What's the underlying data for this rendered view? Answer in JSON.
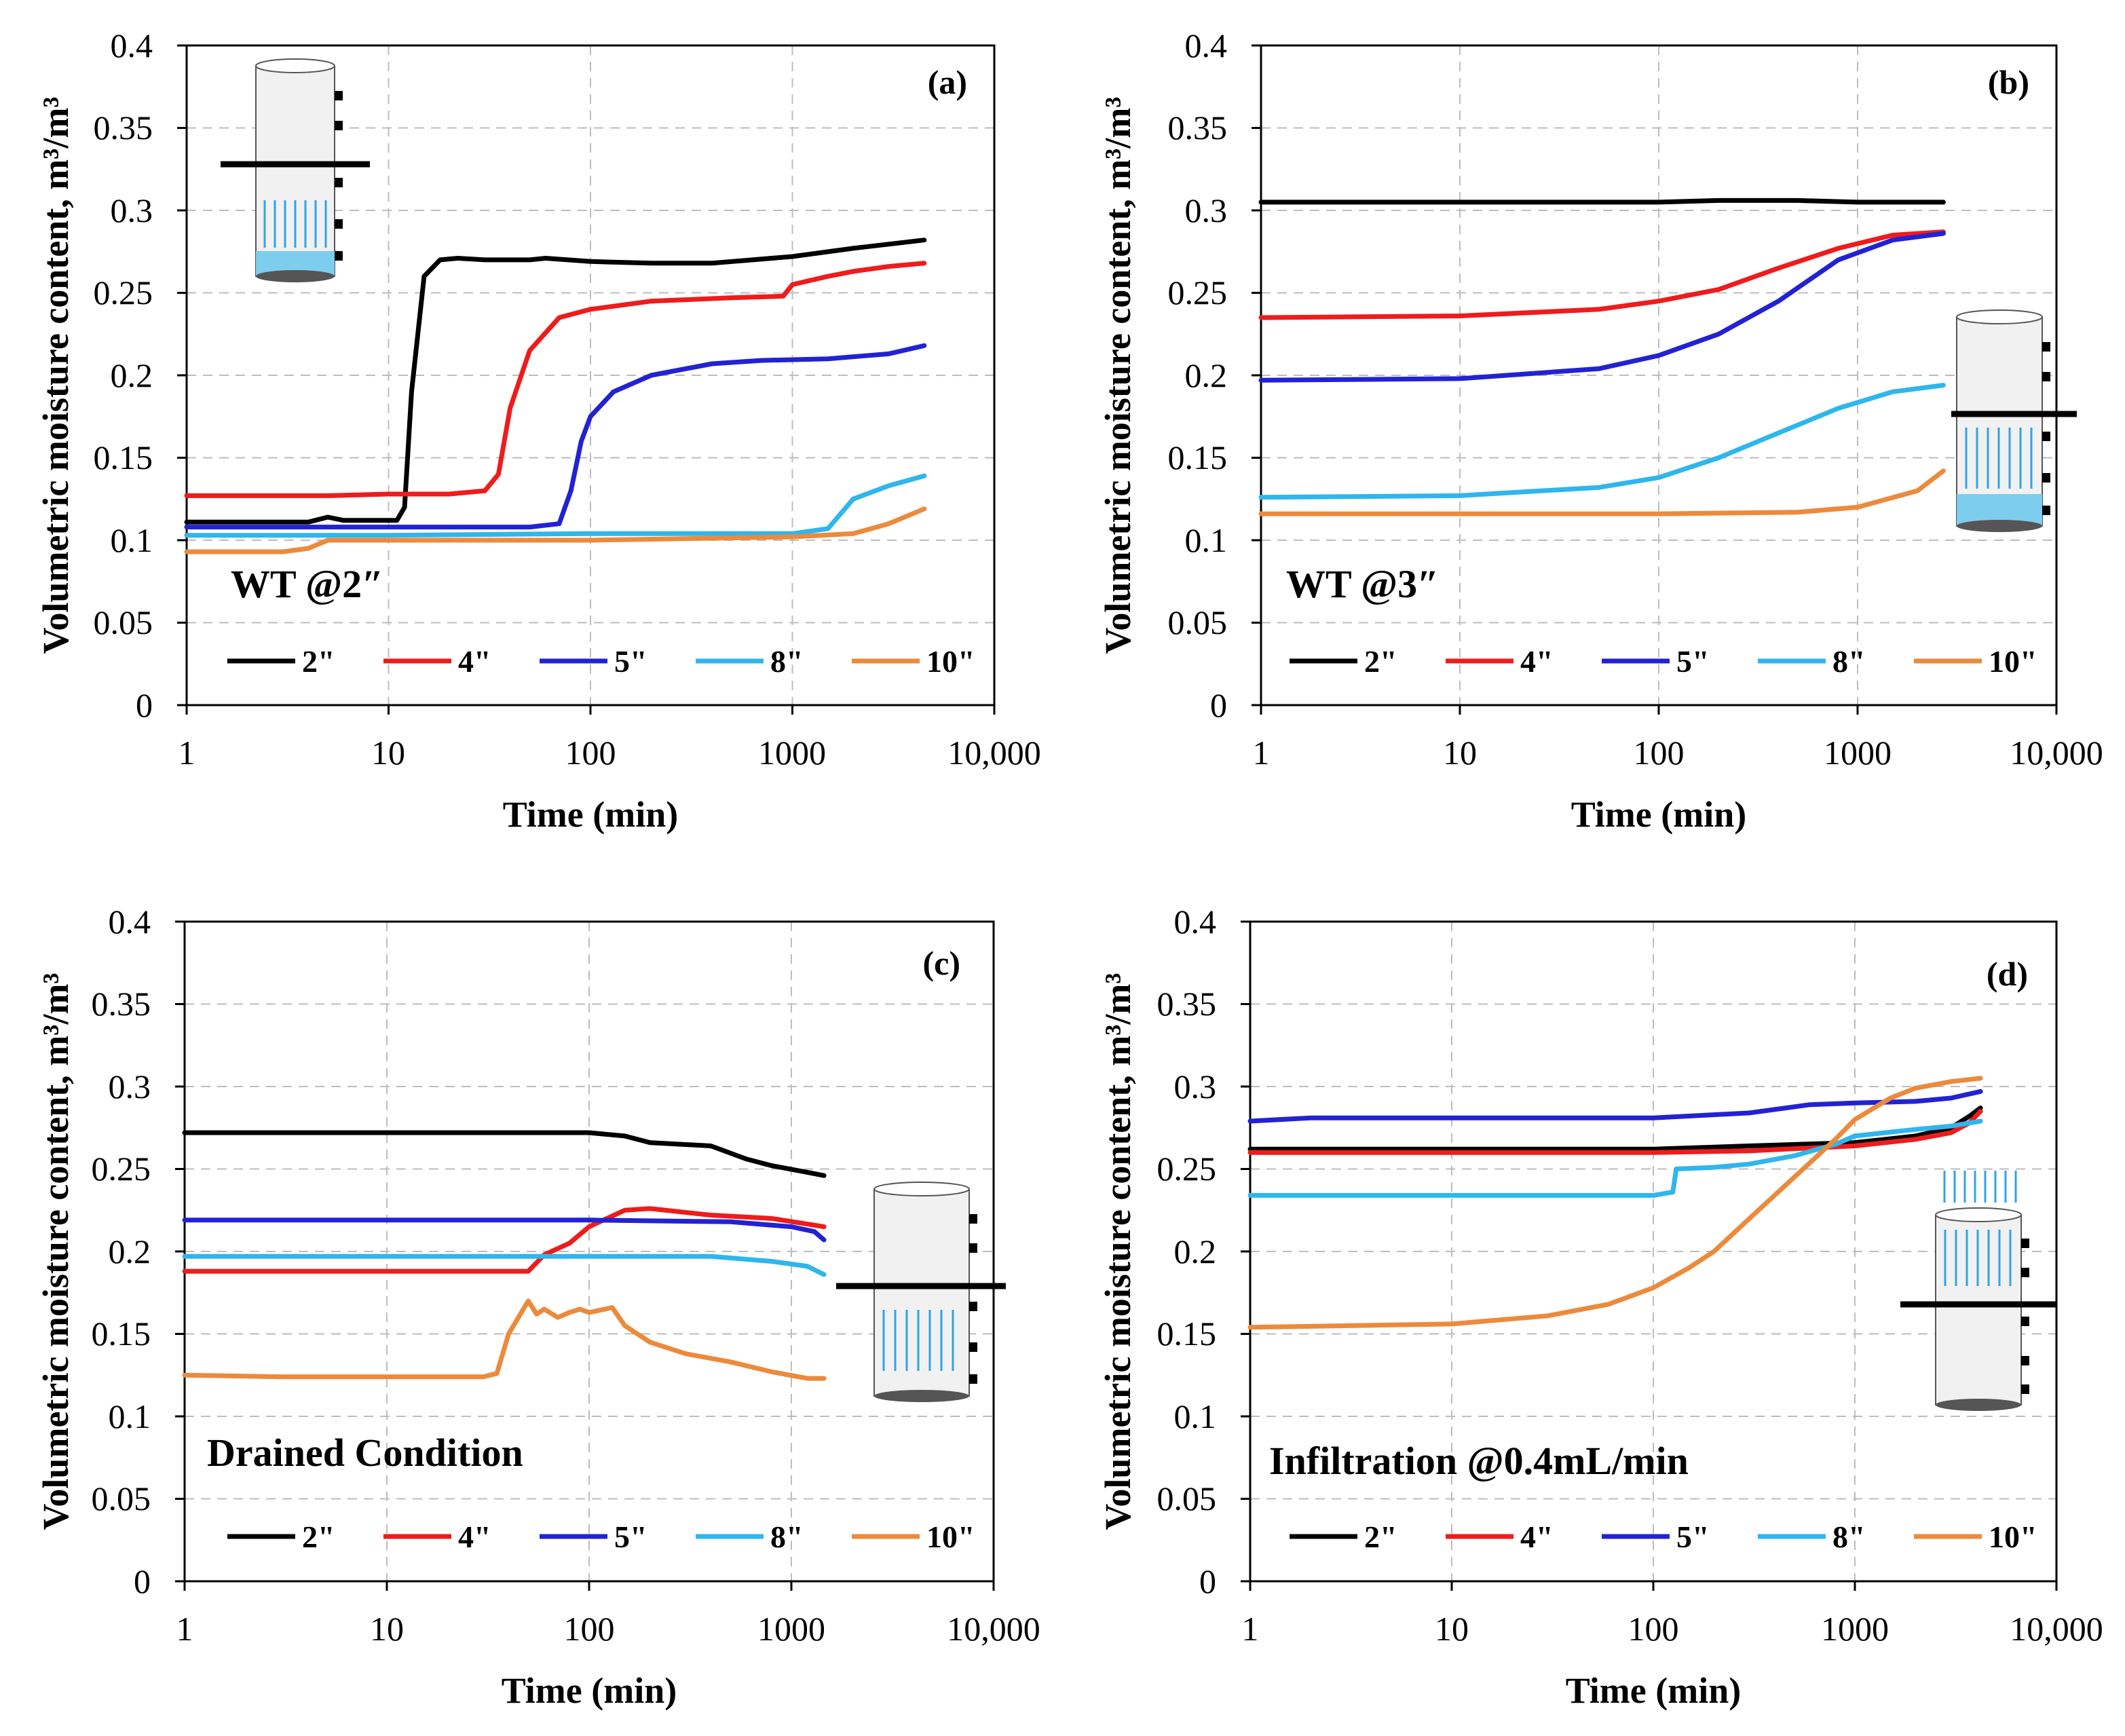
{
  "colors": {
    "s2": "#000000",
    "s4": "#ee1c1c",
    "s5": "#2222d4",
    "s8": "#2fb6ec",
    "s10": "#ec8a3c",
    "water": "#7dcdee",
    "arrow": "#2fa4e7"
  },
  "chart_data": [
    {
      "type": "line",
      "panel": "(a)",
      "condition": "WT @2″",
      "xlabel": "Time (min)",
      "ylabel": "Volumetric moisture content, m³/m³",
      "xscale": "log",
      "xlim": [
        1,
        10000
      ],
      "ylim": [
        0,
        0.4
      ],
      "x_ticks": [
        "1",
        "10",
        "100",
        "1000",
        "10,000"
      ],
      "y_ticks": [
        "0",
        "0.05",
        "0.1",
        "0.15",
        "0.2",
        "0.25",
        "0.3",
        "0.35",
        "0.4"
      ],
      "legend": [
        "2\"",
        "4\"",
        "5\"",
        "8\"",
        "10\""
      ],
      "series": [
        {
          "name": "2\"",
          "x": [
            1,
            2,
            4,
            5,
            6,
            8,
            11,
            12,
            13,
            15,
            18,
            22,
            30,
            50,
            60,
            100,
            200,
            400,
            1000,
            2000,
            4500
          ],
          "y": [
            0.111,
            0.111,
            0.111,
            0.114,
            0.112,
            0.112,
            0.112,
            0.12,
            0.19,
            0.26,
            0.27,
            0.271,
            0.27,
            0.27,
            0.271,
            0.269,
            0.268,
            0.268,
            0.272,
            0.277,
            0.282
          ]
        },
        {
          "name": "4\"",
          "x": [
            1,
            5,
            10,
            20,
            30,
            35,
            40,
            50,
            70,
            100,
            200,
            500,
            900,
            1000,
            1500,
            2000,
            3000,
            4500
          ],
          "y": [
            0.127,
            0.127,
            0.128,
            0.128,
            0.13,
            0.14,
            0.18,
            0.215,
            0.235,
            0.24,
            0.245,
            0.247,
            0.248,
            0.255,
            0.26,
            0.263,
            0.266,
            0.268
          ]
        },
        {
          "name": "5\"",
          "x": [
            1,
            10,
            50,
            70,
            80,
            90,
            100,
            130,
            200,
            400,
            700,
            1500,
            3000,
            4500
          ],
          "y": [
            0.108,
            0.108,
            0.108,
            0.11,
            0.13,
            0.16,
            0.175,
            0.19,
            0.2,
            0.207,
            0.209,
            0.21,
            0.213,
            0.218
          ]
        },
        {
          "name": "8\"",
          "x": [
            1,
            10,
            100,
            1000,
            1500,
            2000,
            3000,
            4500
          ],
          "y": [
            0.103,
            0.103,
            0.104,
            0.104,
            0.107,
            0.125,
            0.133,
            0.139
          ]
        },
        {
          "name": "10\"",
          "x": [
            1,
            3,
            4,
            5,
            10,
            100,
            1000,
            2000,
            3000,
            4500
          ],
          "y": [
            0.093,
            0.093,
            0.095,
            0.1,
            0.1,
            0.1,
            0.102,
            0.104,
            0.11,
            0.119
          ]
        }
      ]
    },
    {
      "type": "line",
      "panel": "(b)",
      "condition": "WT @3″",
      "xlabel": "Time (min)",
      "ylabel": "Volumetric moisture content, m³/m³",
      "xscale": "log",
      "xlim": [
        1,
        10000
      ],
      "ylim": [
        0,
        0.4
      ],
      "x_ticks": [
        "1",
        "10",
        "100",
        "1000",
        "10,000"
      ],
      "y_ticks": [
        "0",
        "0.05",
        "0.1",
        "0.15",
        "0.2",
        "0.25",
        "0.3",
        "0.35",
        "0.4"
      ],
      "legend": [
        "2\"",
        "4\"",
        "5\"",
        "8\"",
        "10\""
      ],
      "series": [
        {
          "name": "2\"",
          "x": [
            1,
            10,
            100,
            200,
            500,
            1000,
            2700
          ],
          "y": [
            0.305,
            0.305,
            0.305,
            0.306,
            0.306,
            0.305,
            0.305
          ]
        },
        {
          "name": "4\"",
          "x": [
            1,
            10,
            50,
            100,
            200,
            400,
            800,
            1500,
            2700
          ],
          "y": [
            0.235,
            0.236,
            0.24,
            0.245,
            0.252,
            0.265,
            0.277,
            0.285,
            0.287
          ]
        },
        {
          "name": "5\"",
          "x": [
            1,
            10,
            50,
            100,
            200,
            400,
            800,
            1500,
            2700
          ],
          "y": [
            0.197,
            0.198,
            0.204,
            0.212,
            0.225,
            0.245,
            0.27,
            0.282,
            0.286
          ]
        },
        {
          "name": "8\"",
          "x": [
            1,
            10,
            50,
            100,
            200,
            400,
            800,
            1500,
            2700
          ],
          "y": [
            0.126,
            0.127,
            0.132,
            0.138,
            0.15,
            0.165,
            0.18,
            0.19,
            0.194
          ]
        },
        {
          "name": "10\"",
          "x": [
            1,
            10,
            100,
            500,
            1000,
            2000,
            2700
          ],
          "y": [
            0.116,
            0.116,
            0.116,
            0.117,
            0.12,
            0.13,
            0.142
          ]
        }
      ]
    },
    {
      "type": "line",
      "panel": "(c)",
      "condition": "Drained Condition",
      "xlabel": "Time (min)",
      "ylabel": "Volumetric moisture content, m³/m³",
      "xscale": "log",
      "xlim": [
        1,
        10000
      ],
      "ylim": [
        0,
        0.4
      ],
      "x_ticks": [
        "1",
        "10",
        "100",
        "1000",
        "10,000"
      ],
      "y_ticks": [
        "0",
        "0.05",
        "0.1",
        "0.15",
        "0.2",
        "0.25",
        "0.3",
        "0.35",
        "0.4"
      ],
      "legend": [
        "2\"",
        "4\"",
        "5\"",
        "8\"",
        "10\""
      ],
      "series": [
        {
          "name": "2\"",
          "x": [
            1,
            10,
            100,
            150,
            200,
            400,
            600,
            800,
            1200,
            1450
          ],
          "y": [
            0.272,
            0.272,
            0.272,
            0.27,
            0.266,
            0.264,
            0.256,
            0.252,
            0.248,
            0.246
          ]
        },
        {
          "name": "4\"",
          "x": [
            1,
            10,
            50,
            60,
            80,
            100,
            150,
            200,
            400,
            800,
            1450
          ],
          "y": [
            0.188,
            0.188,
            0.188,
            0.198,
            0.205,
            0.215,
            0.225,
            0.226,
            0.222,
            0.22,
            0.215
          ]
        },
        {
          "name": "5\"",
          "x": [
            1,
            10,
            100,
            500,
            1000,
            1300,
            1450
          ],
          "y": [
            0.219,
            0.219,
            0.219,
            0.218,
            0.215,
            0.212,
            0.207
          ]
        },
        {
          "name": "8\"",
          "x": [
            1,
            10,
            100,
            400,
            800,
            1200,
            1450
          ],
          "y": [
            0.197,
            0.197,
            0.197,
            0.197,
            0.194,
            0.191,
            0.186
          ]
        },
        {
          "name": "10\"",
          "x": [
            1,
            3,
            10,
            30,
            35,
            40,
            50,
            55,
            60,
            70,
            80,
            90,
            100,
            120,
            130,
            150,
            200,
            300,
            500,
            800,
            1200,
            1450
          ],
          "y": [
            0.125,
            0.124,
            0.124,
            0.124,
            0.126,
            0.15,
            0.17,
            0.162,
            0.165,
            0.16,
            0.163,
            0.165,
            0.163,
            0.165,
            0.166,
            0.155,
            0.145,
            0.138,
            0.133,
            0.127,
            0.123,
            0.123
          ]
        }
      ]
    },
    {
      "type": "line",
      "panel": "(d)",
      "condition": "Infiltration @0.4mL/min",
      "xlabel": "Time (min)",
      "ylabel": "Volumetric moisture content, m³/m³",
      "xscale": "log",
      "xlim": [
        1,
        10000
      ],
      "ylim": [
        0,
        0.4
      ],
      "x_ticks": [
        "1",
        "10",
        "100",
        "1000",
        "10,000"
      ],
      "y_ticks": [
        "0",
        "0.05",
        "0.1",
        "0.15",
        "0.2",
        "0.25",
        "0.3",
        "0.35",
        "0.4"
      ],
      "legend": [
        "2\"",
        "4\"",
        "5\"",
        "8\"",
        "10\""
      ],
      "series": [
        {
          "name": "2\"",
          "x": [
            1,
            10,
            100,
            300,
            1000,
            2000,
            3000,
            3700,
            4200
          ],
          "y": [
            0.262,
            0.262,
            0.262,
            0.264,
            0.266,
            0.27,
            0.275,
            0.282,
            0.287
          ]
        },
        {
          "name": "4\"",
          "x": [
            1,
            10,
            100,
            300,
            1000,
            2000,
            3000,
            3700,
            4200
          ],
          "y": [
            0.26,
            0.26,
            0.26,
            0.261,
            0.264,
            0.268,
            0.272,
            0.278,
            0.285
          ]
        },
        {
          "name": "5\"",
          "x": [
            1,
            2,
            10,
            100,
            300,
            600,
            1000,
            2000,
            3000,
            4200
          ],
          "y": [
            0.279,
            0.281,
            0.281,
            0.281,
            0.284,
            0.289,
            0.29,
            0.291,
            0.293,
            0.297
          ]
        },
        {
          "name": "8\"",
          "x": [
            1,
            10,
            100,
            125,
            130,
            200,
            300,
            500,
            800,
            1000,
            2000,
            3000,
            4200
          ],
          "y": [
            0.234,
            0.234,
            0.234,
            0.236,
            0.25,
            0.251,
            0.253,
            0.258,
            0.265,
            0.27,
            0.274,
            0.276,
            0.279
          ]
        },
        {
          "name": "10\"",
          "x": [
            1,
            10,
            30,
            60,
            100,
            150,
            200,
            300,
            500,
            800,
            1000,
            1500,
            2000,
            3000,
            4200
          ],
          "y": [
            0.154,
            0.156,
            0.161,
            0.168,
            0.178,
            0.19,
            0.2,
            0.22,
            0.245,
            0.268,
            0.28,
            0.293,
            0.299,
            0.303,
            0.305
          ]
        }
      ]
    }
  ]
}
